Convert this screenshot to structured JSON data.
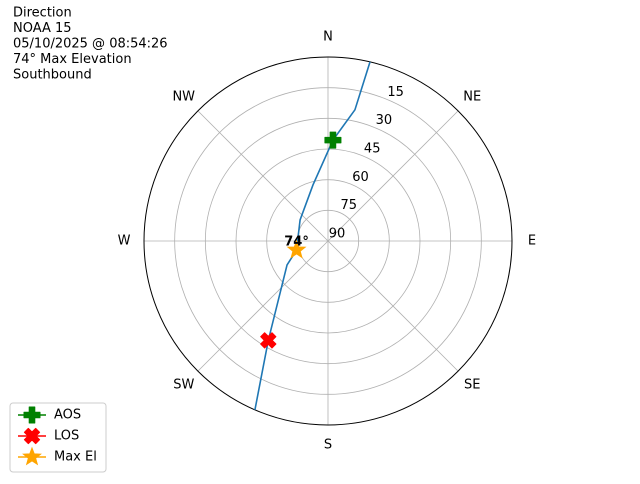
{
  "chart_data": {
    "type": "polar",
    "title_lines": [
      "Direction",
      "NOAA 15",
      "05/10/2025 @ 08:54:26",
      "74° Max Elevation",
      "Southbound"
    ],
    "rlim": [
      90,
      0
    ],
    "rticks": [
      15,
      30,
      45,
      60,
      75,
      90
    ],
    "thetaticks": [
      {
        "value": 0,
        "label": "N"
      },
      {
        "value": 45,
        "label": "NE"
      },
      {
        "value": 90,
        "label": "E"
      },
      {
        "value": 135,
        "label": "SE"
      },
      {
        "value": 180,
        "label": "S"
      },
      {
        "value": 225,
        "label": "SW"
      },
      {
        "value": 270,
        "label": "W"
      },
      {
        "value": 315,
        "label": "NW"
      }
    ],
    "grid": true,
    "legend": "lower left",
    "series": [
      {
        "kind": "line",
        "color": "#1f77b4",
        "azimuth": [
          13.2,
          11.6,
          2.8,
          345,
          307,
          254,
          239.7,
          211,
          203.4
        ],
        "values": [
          0,
          24.5,
          40.6,
          61.6,
          72.9,
          74,
          66.8,
          33.3,
          0
        ]
      },
      {
        "name": "AOS",
        "marker": "plus",
        "color": "#008000",
        "azimuth": [
          2.8
        ],
        "values": [
          40.6
        ]
      },
      {
        "name": "LOS",
        "marker": "x",
        "color": "#ff0000",
        "azimuth": [
          211
        ],
        "values": [
          33.3
        ]
      },
      {
        "name": "Max El",
        "marker": "star",
        "color": "#ffa500",
        "azimuth": [
          254
        ],
        "values": [
          74
        ],
        "value_labels": [
          "74°"
        ]
      }
    ]
  }
}
